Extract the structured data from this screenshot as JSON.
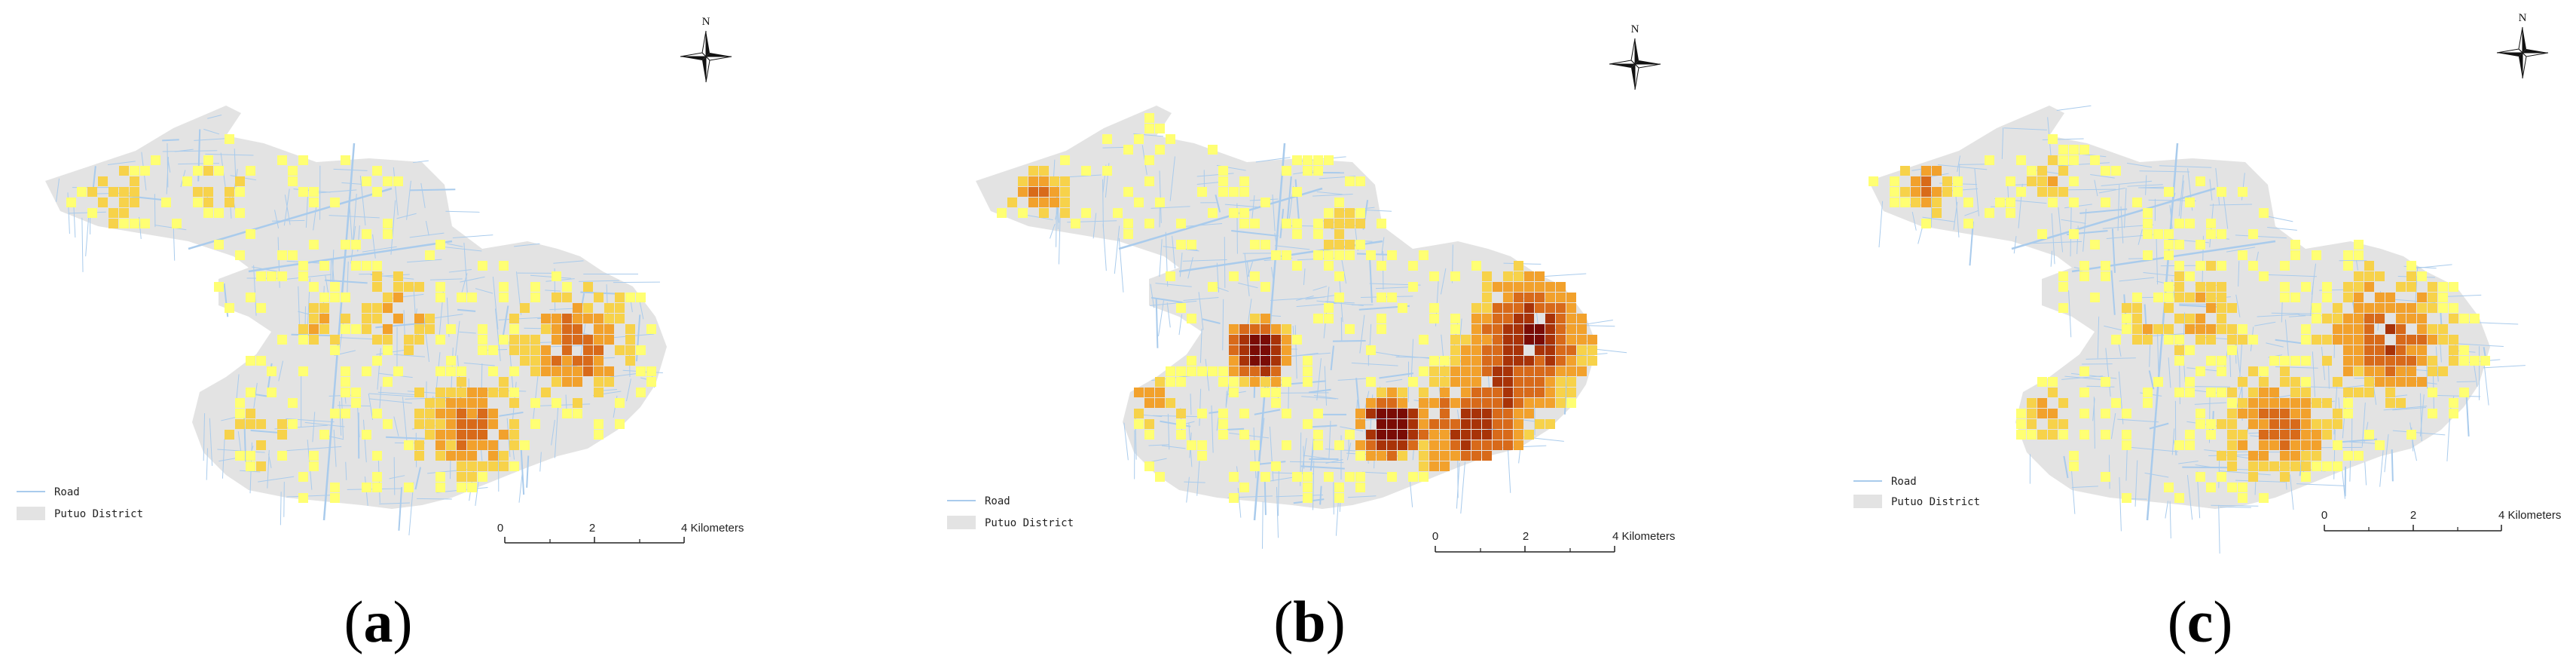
{
  "panels": [
    {
      "label_open": "(",
      "label_letter": "a",
      "label_close": ")",
      "legend": {
        "road": "Road",
        "district": "Putuo District"
      },
      "scale": {
        "ticks": [
          "0",
          "2",
          "4 Kilometers"
        ]
      },
      "north": "N"
    },
    {
      "label_open": "(",
      "label_letter": "b",
      "label_close": ")",
      "legend": {
        "road": "Road",
        "district": "Putuo District"
      },
      "scale": {
        "ticks": [
          "0",
          "2",
          "4 Kilometers"
        ]
      },
      "north": "N"
    },
    {
      "label_open": "(",
      "label_letter": "c",
      "label_close": ")",
      "legend": {
        "road": "Road",
        "district": "Putuo District"
      },
      "scale": {
        "ticks": [
          "0",
          "2",
          "4 Kilometers"
        ]
      },
      "north": "N"
    }
  ],
  "colors": {
    "district_fill": "#e3e3e3",
    "road": "#a9cbec",
    "class_1": "#ffff73",
    "class_2": "#f7d24a",
    "class_3": "#f2a12c",
    "class_4": "#d86a1a",
    "class_5": "#a83308",
    "class_6": "#7a0c05"
  }
}
